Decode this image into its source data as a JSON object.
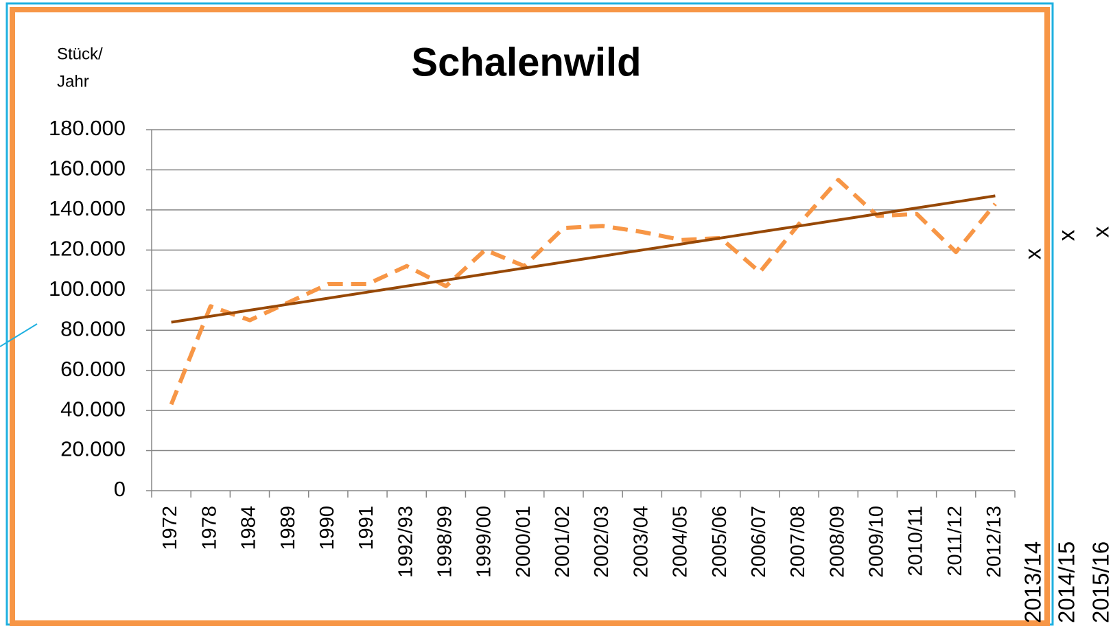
{
  "chart_data": {
    "type": "line",
    "title": "Schalenwild",
    "y_label": [
      "Stück/",
      "Jahr"
    ],
    "categories": [
      "1972",
      "1978",
      "1984",
      "1989",
      "1990",
      "1991",
      "1992/93",
      "1998/99",
      "1999/00",
      "2000/01",
      "2001/02",
      "2002/03",
      "2003/04",
      "2004/05",
      "2005/06",
      "2006/07",
      "2007/08",
      "2008/09",
      "2009/10",
      "2010/11",
      "2011/12",
      "2012/13"
    ],
    "series": [
      {
        "color": "#f79646",
        "style": "dashed",
        "values": [
          43000,
          92000,
          85000,
          94000,
          103000,
          103000,
          112000,
          102000,
          120000,
          112000,
          131000,
          132000,
          129000,
          125000,
          126000,
          109000,
          133000,
          155000,
          137000,
          138000,
          119000,
          143000
        ]
      },
      {
        "color": "#974806",
        "style": "solid",
        "values": [
          84000,
          87000,
          90000,
          93000,
          96000,
          99000,
          102000,
          105000,
          108000,
          111000,
          114000,
          117000,
          120000,
          123000,
          126000,
          129000,
          132000,
          135000,
          138000,
          141000,
          144000,
          147000
        ]
      }
    ],
    "ylim": [
      0,
      180000
    ],
    "yticks": [
      0,
      {
        "value": 20000,
        "label": "20.000"
      },
      {
        "value": 40000,
        "label": "40.000"
      },
      {
        "value": 60000,
        "label": "60.000"
      },
      {
        "value": 80000,
        "label": "80.000"
      },
      {
        "value": 100000,
        "label": "100.000"
      },
      {
        "value": 120000,
        "label": "120.000"
      },
      {
        "value": 140000,
        "label": "140.000"
      },
      {
        "value": 160000,
        "label": "160.000"
      },
      {
        "value": 180000,
        "label": "180.000"
      }
    ],
    "grid": true,
    "extra_labels": [
      {
        "label": "2013/14",
        "mark": "x"
      },
      {
        "label": "2014/15",
        "mark": "x"
      },
      {
        "label": "2015/16",
        "mark": "x"
      }
    ]
  }
}
